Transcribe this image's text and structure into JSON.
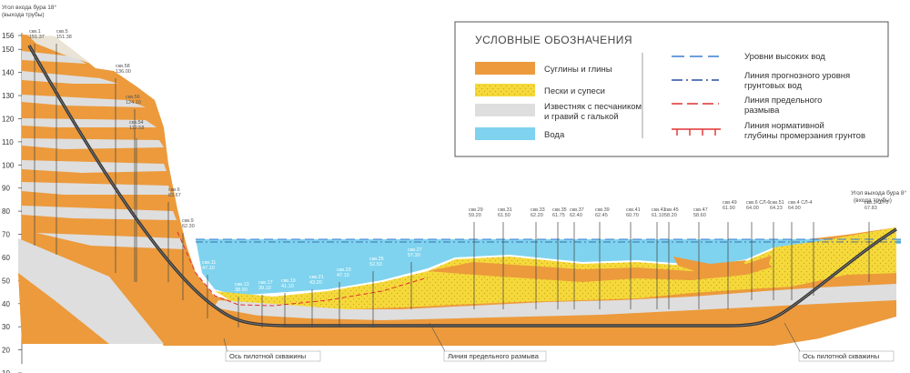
{
  "axis": {
    "ticks": [
      "156",
      "150",
      "140",
      "130",
      "120",
      "110",
      "100",
      "90",
      "80",
      "70",
      "60",
      "50",
      "40",
      "30",
      "20",
      "10"
    ]
  },
  "top_left": {
    "line1": "Угол входа бура 18°",
    "line2": "(выхода трубы)"
  },
  "top_right": {
    "line1": "Угол выхода бура 8°",
    "line2": "(входа трубы)"
  },
  "legend": {
    "title": "УСЛОВНЫЕ ОБОЗНАЧЕНИЯ",
    "left": [
      {
        "label": "Суглины и глины",
        "color": "#ec9a3c"
      },
      {
        "label": "Пески и супеси",
        "color": "#f5d93a"
      },
      {
        "label": "Известняк с песчаником и гравий с галькой",
        "line1": "Известняк с песчаником",
        "line2": "и гравий с галькой",
        "color": "#dedede"
      },
      {
        "label": "Вода",
        "color": "#7fd3ee"
      }
    ],
    "right": [
      {
        "label": "Уровни высоких вод",
        "color": "#3b7fd0"
      },
      {
        "label": "Линия прогнозного уровня грунтовых вод",
        "line1": "Линия прогнозного уровня",
        "line2": "грунтовых вод",
        "color": "#2a4ea0"
      },
      {
        "label": "Линия предельного размыва",
        "line1": "Линия предельного",
        "line2": "размыва",
        "color": "#e03030"
      },
      {
        "label": "Линия нормативной глубины промерзания грунтов",
        "line1": "Линия нормативной",
        "line2": "глубины промерзания грунтов",
        "color": "#e03030"
      }
    ]
  },
  "annotations": {
    "axis_left": "Ось пилотной скважины",
    "scour_line": "Линия предельного размыва",
    "axis_right": "Ось пилотной скважины"
  },
  "wells": [
    {
      "name": "скв.1",
      "elev": "151.37"
    },
    {
      "name": "скв.5",
      "elev": "151.38"
    },
    {
      "name": "скв.58",
      "elev": "136.00"
    },
    {
      "name": "скв.56",
      "elev": "124.10"
    },
    {
      "name": "скв.54",
      "elev": "112.58"
    },
    {
      "name": "скв.6",
      "elev": "83.67"
    },
    {
      "name": "скв.9",
      "elev": "62.30"
    },
    {
      "name": "скв.11",
      "elev": "47.10"
    },
    {
      "name": "скв.13",
      "elev": "38.90"
    },
    {
      "name": "скв.17",
      "elev": "39.10"
    },
    {
      "name": "скв.19",
      "elev": "41.10"
    },
    {
      "name": "скв.21",
      "elev": "43.20"
    },
    {
      "name": "скв.23",
      "elev": "47.10"
    },
    {
      "name": "скв.25",
      "elev": "52.50"
    },
    {
      "name": "скв.27",
      "elev": "57.30"
    },
    {
      "name": "скв.29",
      "elev": "59.20"
    },
    {
      "name": "скв.31",
      "elev": "61.50"
    },
    {
      "name": "скв.33",
      "elev": "62.20"
    },
    {
      "name": "скв.35",
      "elev": "61.75"
    },
    {
      "name": "скв.37",
      "elev": "62.40"
    },
    {
      "name": "скв.39",
      "elev": "62.45"
    },
    {
      "name": "скв.41",
      "elev": "60.70"
    },
    {
      "name": "скв.43",
      "elev": "61.10"
    },
    {
      "name": "скв.45",
      "elev": "58.20"
    },
    {
      "name": "скв.47",
      "elev": "58.60"
    },
    {
      "name": "скв.49",
      "elev": "61.90"
    },
    {
      "name": "скв.6 СЛ-6",
      "elev": "64.00"
    },
    {
      "name": "скв.51",
      "elev": "64.23"
    },
    {
      "name": "скв.4 СЛ-4",
      "elev": "64.90"
    },
    {
      "name": "скв.3 СЛ-3",
      "elev": "67.83"
    }
  ]
}
